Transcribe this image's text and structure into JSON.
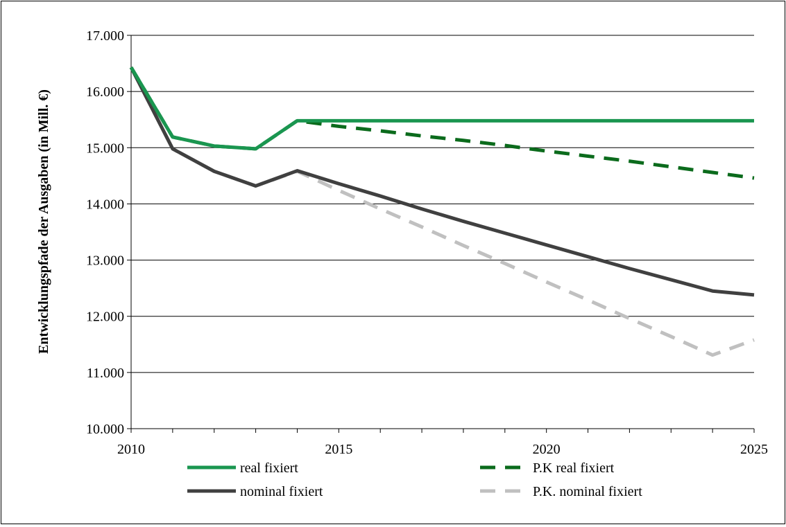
{
  "chart_data": {
    "type": "line",
    "title": "",
    "xlabel": "",
    "ylabel": "Entwicklungspfade der Ausgaben (in Mill. €)",
    "xlim": [
      2010,
      2025
    ],
    "ylim": [
      10000,
      17000
    ],
    "grid": true,
    "legend_position": "bottom",
    "x_ticks": [
      2010,
      2015,
      2020,
      2025
    ],
    "x_tick_labels": [
      "2010",
      "2015",
      "2020",
      "2025"
    ],
    "y_ticks": [
      10000,
      11000,
      12000,
      13000,
      14000,
      15000,
      16000,
      17000
    ],
    "y_tick_labels": [
      "10.000",
      "11.000",
      "12.000",
      "13.000",
      "14.000",
      "15.000",
      "16.000",
      "17.000"
    ],
    "x": [
      2010,
      2011,
      2012,
      2013,
      2014,
      2015,
      2016,
      2017,
      2018,
      2019,
      2020,
      2021,
      2022,
      2023,
      2024,
      2025
    ],
    "series": [
      {
        "name": "real fixiert",
        "color": "#1a9650",
        "dash": "solid",
        "values": [
          16430,
          15190,
          15030,
          14980,
          15480,
          15480,
          15480,
          15480,
          15480,
          15480,
          15480,
          15480,
          15480,
          15480,
          15480,
          15480
        ]
      },
      {
        "name": "P.K real fixiert",
        "color": "#0b6b1c",
        "dash": "dashed",
        "values": [
          16430,
          15190,
          15030,
          14980,
          15480,
          15380,
          15300,
          15210,
          15130,
          15040,
          14940,
          14850,
          14760,
          14660,
          14560,
          14460
        ]
      },
      {
        "name": "nominal fixiert",
        "color": "#404040",
        "dash": "solid",
        "values": [
          16430,
          14980,
          14580,
          14320,
          14590,
          14360,
          14140,
          13910,
          13690,
          13480,
          13270,
          13060,
          12850,
          12650,
          12450,
          12380
        ]
      },
      {
        "name": "P.K. nominal fixiert",
        "color": "#c0c0c0",
        "dash": "dashed",
        "values": [
          16430,
          14980,
          14580,
          14320,
          14580,
          14240,
          13910,
          13590,
          13260,
          12940,
          12610,
          12290,
          11960,
          11640,
          11310,
          11580
        ]
      }
    ]
  }
}
